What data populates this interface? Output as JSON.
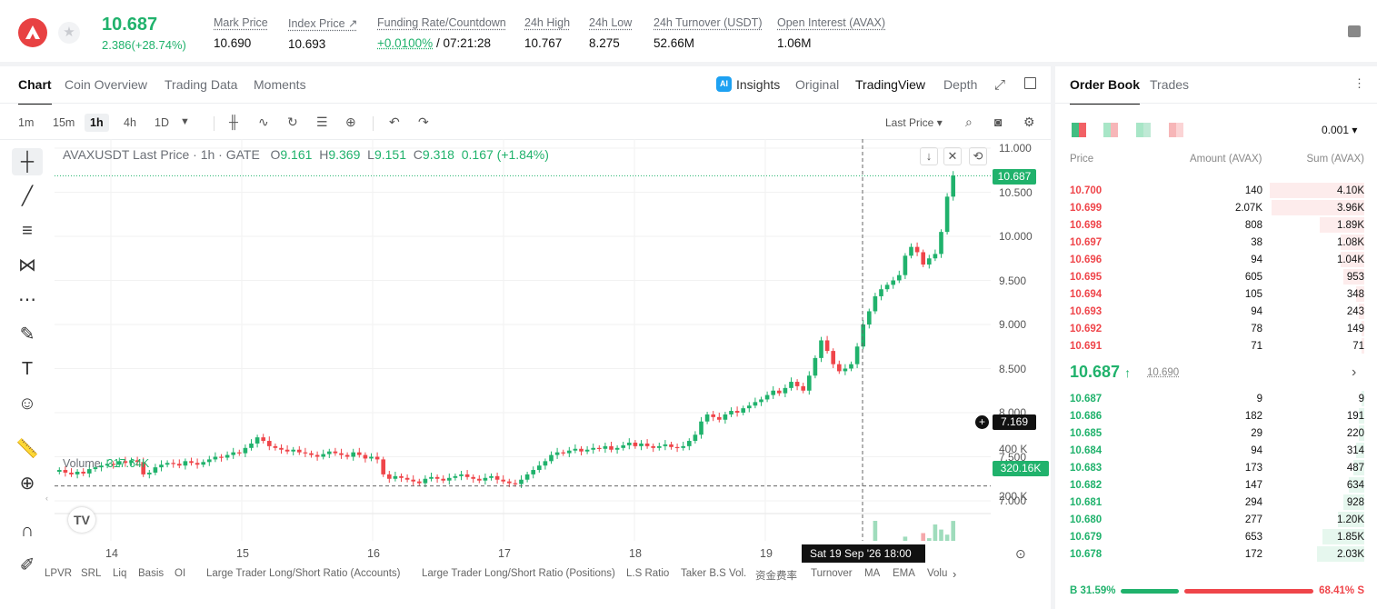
{
  "ticker": {
    "last_price": "10.687",
    "change": "2.386(+28.74%)",
    "stats": [
      {
        "label": "Mark Price",
        "value": "10.690"
      },
      {
        "label": "Index Price ↗",
        "value": "10.693"
      },
      {
        "label": "Funding Rate/Countdown",
        "value": "+0.0100%",
        "value2": " / 07:21:28"
      },
      {
        "label": "24h High",
        "value": "10.767"
      },
      {
        "label": "24h Low",
        "value": "8.275"
      },
      {
        "label": "24h Turnover (USDT)",
        "value": "52.66M"
      },
      {
        "label": "Open Interest (AVAX)",
        "value": "1.06M"
      }
    ]
  },
  "chart_tabs": [
    "Chart",
    "Coin Overview",
    "Trading Data",
    "Moments"
  ],
  "view_tabs": {
    "insights": "Insights",
    "original": "Original",
    "tradingview": "TradingView",
    "depth": "Depth"
  },
  "intervals": [
    "1m",
    "15m",
    "1h",
    "4h",
    "1D"
  ],
  "price_type": "Last Price",
  "ohlc": {
    "symbol": "AVAXUSDT Last Price · 1h · GATE",
    "o_label": "O",
    "o": "9.161",
    "h_label": "H",
    "h": "9.369",
    "l_label": "L",
    "l": "9.151",
    "c_label": "C",
    "c": "9.318",
    "chg": "0.167 (+1.84%)"
  },
  "volume": {
    "label": "Volume",
    "value": "317.64K"
  },
  "price_axis": [
    "11.000",
    "10.500",
    "10.000",
    "9.500",
    "9.000",
    "8.500",
    "8.000",
    "7.500",
    "7.000"
  ],
  "volume_axis": [
    "400 K",
    "200 K"
  ],
  "time_axis": [
    "14",
    "15",
    "16",
    "17",
    "18",
    "19"
  ],
  "last_price_tag": "10.687",
  "crosshair_price": "7.169",
  "volume_tag": "320.16K",
  "crosshair_time": "Sat 19 Sep '26   18:00",
  "indicators": [
    "LPVR",
    "SRL",
    "Liq",
    "Basis",
    "OI",
    "Large Trader Long/Short Ratio (Accounts)",
    "Large Trader Long/Short Ratio (Positions)",
    "L.S Ratio",
    "Taker B.S Vol.",
    "资金费率",
    "Turnover",
    "MA",
    "EMA",
    "Volu"
  ],
  "chart_data": {
    "type": "candlestick",
    "x": "hourly, Sep 13 – Sep 19",
    "ylim": [
      7.0,
      11.0
    ],
    "closes": [
      7.35,
      7.32,
      7.3,
      7.33,
      7.31,
      7.36,
      7.38,
      7.4,
      7.42,
      7.41,
      7.45,
      7.43,
      7.46,
      7.44,
      7.3,
      7.32,
      7.38,
      7.41,
      7.43,
      7.42,
      7.4,
      7.45,
      7.43,
      7.41,
      7.44,
      7.47,
      7.5,
      7.49,
      7.52,
      7.55,
      7.54,
      7.6,
      7.65,
      7.72,
      7.68,
      7.62,
      7.6,
      7.58,
      7.56,
      7.58,
      7.55,
      7.54,
      7.52,
      7.5,
      7.53,
      7.56,
      7.54,
      7.52,
      7.5,
      7.55,
      7.52,
      7.48,
      7.5,
      7.47,
      7.3,
      7.25,
      7.28,
      7.26,
      7.24,
      7.22,
      7.2,
      7.25,
      7.27,
      7.25,
      7.23,
      7.26,
      7.28,
      7.3,
      7.27,
      7.25,
      7.23,
      7.26,
      7.28,
      7.24,
      7.22,
      7.2,
      7.19,
      7.24,
      7.3,
      7.35,
      7.4,
      7.45,
      7.52,
      7.55,
      7.54,
      7.57,
      7.59,
      7.56,
      7.58,
      7.6,
      7.59,
      7.62,
      7.58,
      7.6,
      7.63,
      7.66,
      7.62,
      7.65,
      7.62,
      7.6,
      7.62,
      7.64,
      7.61,
      7.6,
      7.62,
      7.68,
      7.75,
      7.9,
      7.98,
      7.95,
      7.92,
      7.98,
      8.02,
      8.0,
      8.05,
      8.08,
      8.12,
      8.15,
      8.2,
      8.25,
      8.22,
      8.28,
      8.35,
      8.3,
      8.25,
      8.42,
      8.62,
      8.82,
      8.7,
      8.55,
      8.47,
      8.5,
      8.55,
      8.75,
      9.0,
      9.15,
      9.32,
      9.4,
      9.45,
      9.5,
      9.56,
      9.78,
      9.88,
      9.82,
      9.68,
      9.75,
      9.8,
      10.05,
      10.45,
      10.69
    ],
    "volume_ylim": [
      0,
      400000
    ]
  },
  "orderbook": {
    "tabs": [
      "Order Book",
      "Trades"
    ],
    "precision": "0.001",
    "headers": [
      "Price",
      "Amount (AVAX)",
      "Sum (AVAX)"
    ],
    "asks": [
      {
        "price": "10.700",
        "amount": "140",
        "sum": "4.10K",
        "depth": 0.36
      },
      {
        "price": "10.699",
        "amount": "2.07K",
        "sum": "3.96K",
        "depth": 0.35
      },
      {
        "price": "10.698",
        "amount": "808",
        "sum": "1.89K",
        "depth": 0.17
      },
      {
        "price": "10.697",
        "amount": "38",
        "sum": "1.08K",
        "depth": 0.09
      },
      {
        "price": "10.696",
        "amount": "94",
        "sum": "1.04K",
        "depth": 0.09
      },
      {
        "price": "10.695",
        "amount": "605",
        "sum": "953",
        "depth": 0.08
      },
      {
        "price": "10.694",
        "amount": "105",
        "sum": "348",
        "depth": 0.03
      },
      {
        "price": "10.693",
        "amount": "94",
        "sum": "243",
        "depth": 0.02
      },
      {
        "price": "10.692",
        "amount": "78",
        "sum": "149",
        "depth": 0.01
      },
      {
        "price": "10.691",
        "amount": "71",
        "sum": "71",
        "depth": 0.01
      }
    ],
    "last": "10.687",
    "mark": "10.690",
    "bids": [
      {
        "price": "10.687",
        "amount": "9",
        "sum": "9",
        "depth": 0.01
      },
      {
        "price": "10.686",
        "amount": "182",
        "sum": "191",
        "depth": 0.02
      },
      {
        "price": "10.685",
        "amount": "29",
        "sum": "220",
        "depth": 0.02
      },
      {
        "price": "10.684",
        "amount": "94",
        "sum": "314",
        "depth": 0.03
      },
      {
        "price": "10.683",
        "amount": "173",
        "sum": "487",
        "depth": 0.04
      },
      {
        "price": "10.682",
        "amount": "147",
        "sum": "634",
        "depth": 0.06
      },
      {
        "price": "10.681",
        "amount": "294",
        "sum": "928",
        "depth": 0.08
      },
      {
        "price": "10.680",
        "amount": "277",
        "sum": "1.20K",
        "depth": 0.1
      },
      {
        "price": "10.679",
        "amount": "653",
        "sum": "1.85K",
        "depth": 0.16
      },
      {
        "price": "10.678",
        "amount": "172",
        "sum": "2.03K",
        "depth": 0.18
      }
    ],
    "buy_ratio": "B 31.59%",
    "sell_ratio": "68.41% S",
    "buy_frac": 0.3159
  },
  "colors": {
    "up": "#20b26c",
    "down": "#ef454a"
  }
}
